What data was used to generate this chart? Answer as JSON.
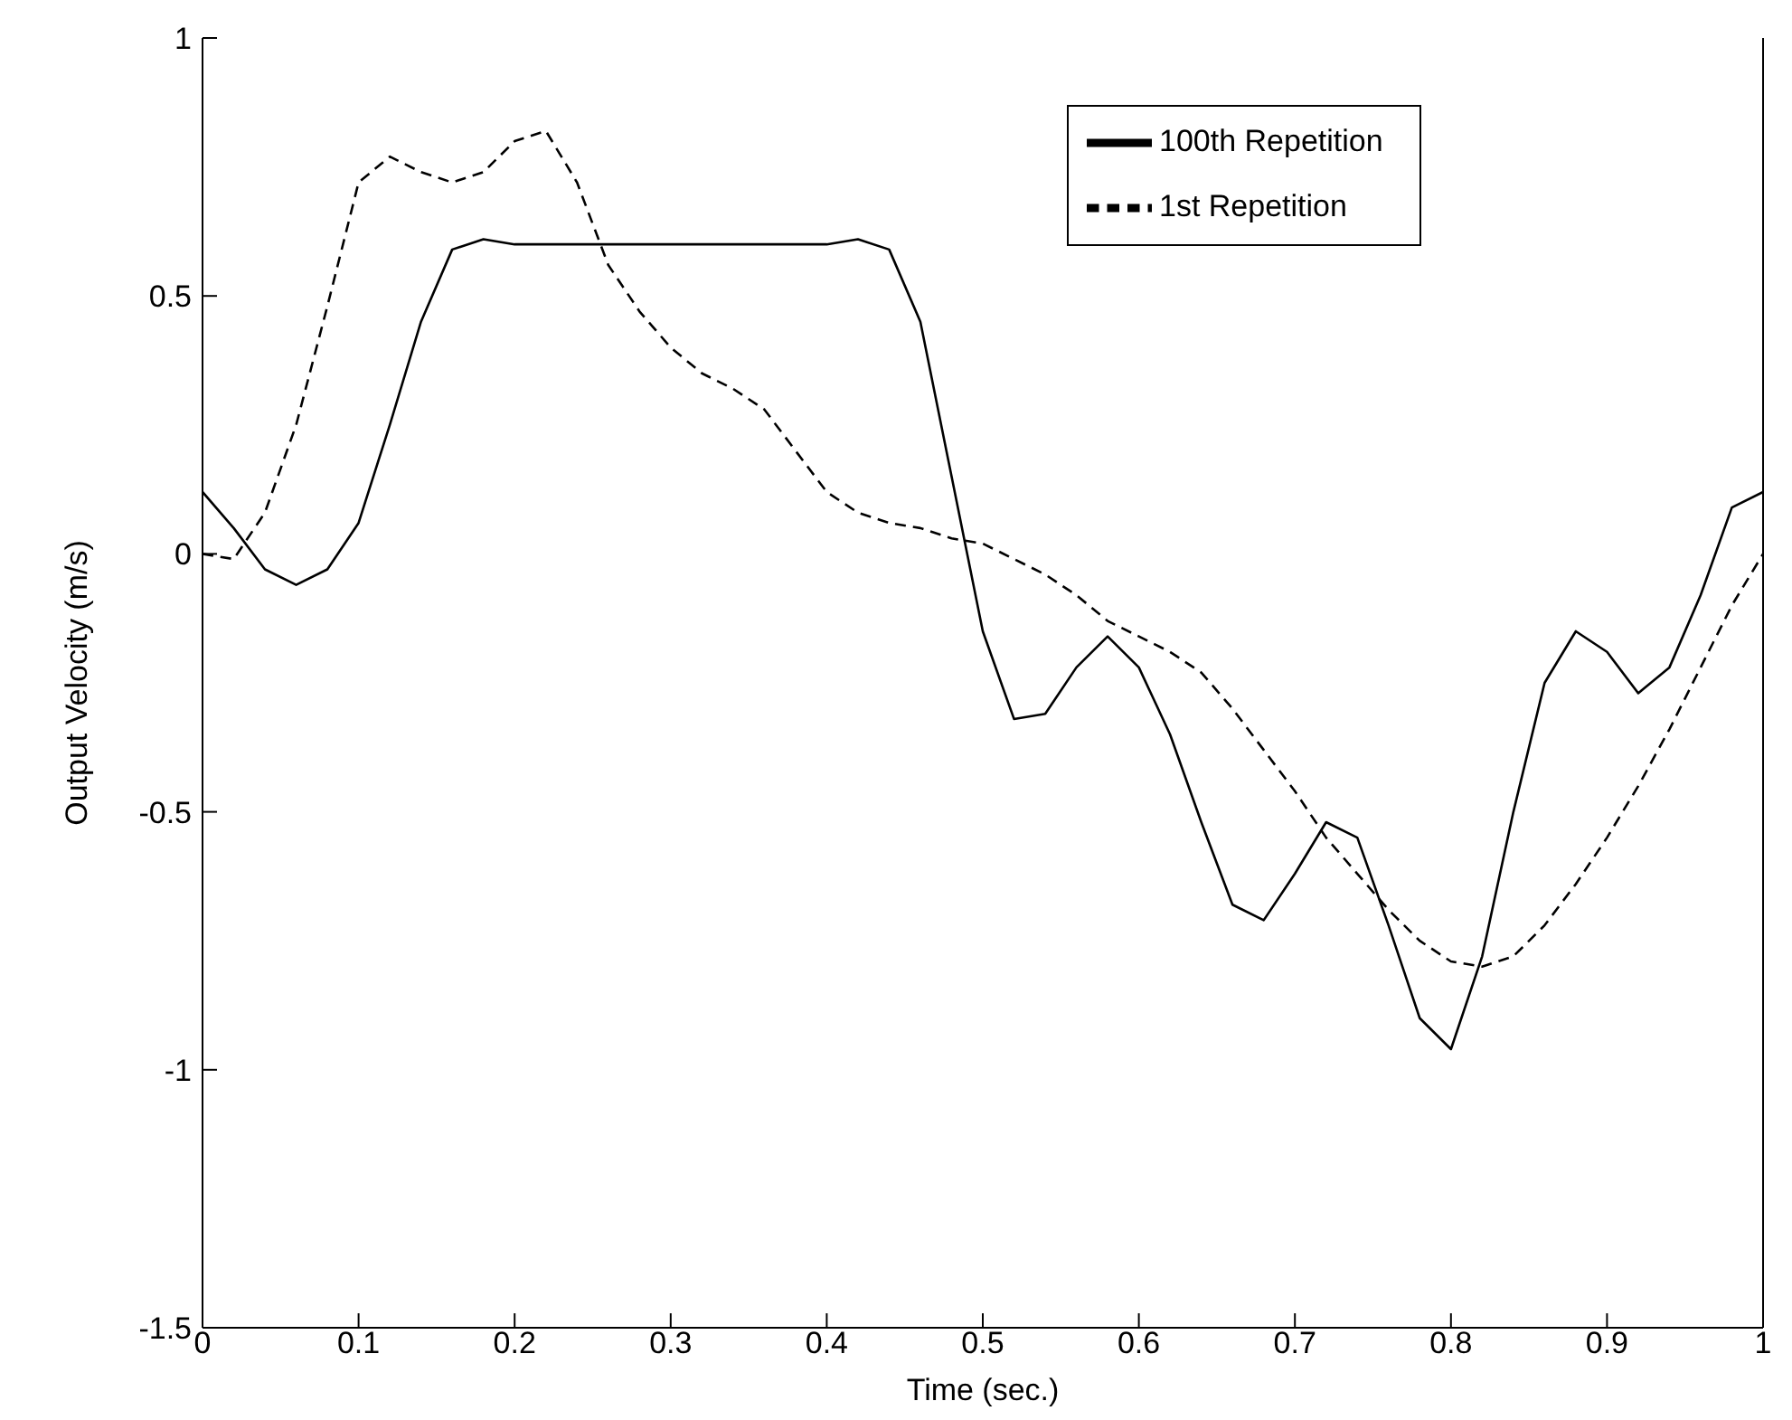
{
  "chart_data": {
    "type": "line",
    "xlabel": "Time  (sec.)",
    "ylabel": "Output Velocity  (m/s)",
    "x": [
      0,
      0.02,
      0.04,
      0.06,
      0.08,
      0.1,
      0.12,
      0.14,
      0.16,
      0.18,
      0.2,
      0.22,
      0.24,
      0.26,
      0.28,
      0.3,
      0.32,
      0.34,
      0.36,
      0.38,
      0.4,
      0.42,
      0.44,
      0.46,
      0.48,
      0.5,
      0.52,
      0.54,
      0.56,
      0.58,
      0.6,
      0.62,
      0.64,
      0.66,
      0.68,
      0.7,
      0.72,
      0.74,
      0.76,
      0.78,
      0.8,
      0.82,
      0.84,
      0.86,
      0.88,
      0.9,
      0.92,
      0.94,
      0.96,
      0.98,
      1
    ],
    "series": [
      {
        "name": "100th Repetition",
        "color": "#000000",
        "line_style": "solid",
        "values": [
          0.12,
          0.05,
          -0.03,
          -0.06,
          -0.03,
          0.06,
          0.25,
          0.45,
          0.59,
          0.61,
          0.6,
          0.6,
          0.6,
          0.6,
          0.6,
          0.6,
          0.6,
          0.6,
          0.6,
          0.6,
          0.6,
          0.61,
          0.59,
          0.45,
          0.15,
          -0.15,
          -0.32,
          -0.31,
          -0.22,
          -0.16,
          -0.22,
          -0.35,
          -0.52,
          -0.68,
          -0.71,
          -0.62,
          -0.52,
          -0.55,
          -0.72,
          -0.9,
          -0.96,
          -0.78,
          -0.5,
          -0.25,
          -0.15,
          -0.19,
          -0.27,
          -0.22,
          -0.08,
          0.09,
          0.12
        ]
      },
      {
        "name": "1st Repetition",
        "color": "#000000",
        "line_style": "dashed",
        "values": [
          0,
          -0.01,
          0.08,
          0.25,
          0.48,
          0.72,
          0.77,
          0.74,
          0.72,
          0.74,
          0.8,
          0.82,
          0.72,
          0.56,
          0.47,
          0.4,
          0.35,
          0.32,
          0.28,
          0.2,
          0.12,
          0.08,
          0.06,
          0.05,
          0.03,
          0.02,
          -0.01,
          -0.04,
          -0.08,
          -0.13,
          -0.16,
          -0.19,
          -0.23,
          -0.3,
          -0.38,
          -0.46,
          -0.55,
          -0.62,
          -0.69,
          -0.75,
          -0.79,
          -0.8,
          -0.78,
          -0.72,
          -0.64,
          -0.55,
          -0.45,
          -0.34,
          -0.22,
          -0.1,
          0
        ]
      }
    ],
    "xlim": [
      0,
      1
    ],
    "xticks": [
      0,
      0.1,
      0.2,
      0.3,
      0.4,
      0.5,
      0.6,
      0.7,
      0.8,
      0.9,
      1
    ],
    "ylim": [
      -1.5,
      1
    ],
    "yticks": [
      -1.5,
      -1,
      -0.5,
      0,
      0.5,
      1
    ],
    "legend": "top right",
    "marker": "none"
  }
}
